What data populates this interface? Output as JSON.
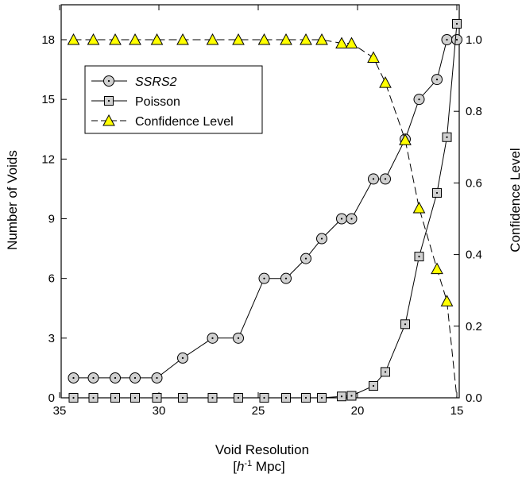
{
  "chart_data": {
    "type": "line",
    "title": "",
    "xlabel": "Void Resolution",
    "xlabel_line2": "[h-1 Mpc]",
    "xlabel_parts": {
      "open": "[",
      "italic": "h",
      "sup": "-1",
      "rest": " Mpc]"
    },
    "ylabel": "Number of Voids",
    "y2label": "Confidence Level",
    "xlim": [
      35,
      15
    ],
    "ylim": [
      0,
      20
    ],
    "y2lim": [
      0,
      1.1111
    ],
    "xticks": [
      35,
      30,
      25,
      20,
      15
    ],
    "yticks": [
      0,
      3,
      6,
      9,
      12,
      15,
      18
    ],
    "y2ticks": [
      0.0,
      0.2,
      0.4,
      0.6,
      0.8,
      1.0
    ],
    "xtick_labels": [
      "35",
      "30",
      "25",
      "20",
      "15"
    ],
    "ytick_labels": [
      "0",
      "3",
      "6",
      "9",
      "12",
      "15",
      "18"
    ],
    "y2tick_labels": [
      "0.0",
      "0.2",
      "0.4",
      "0.6",
      "0.8",
      "1.0"
    ],
    "legend_position": "top-left",
    "x": [
      34.3,
      33.3,
      32.2,
      31.2,
      30.1,
      28.8,
      27.3,
      26.0,
      24.7,
      23.6,
      22.6,
      21.8,
      20.8,
      20.3,
      19.2,
      18.6,
      17.6,
      16.9,
      16.0,
      15.5,
      15.0
    ],
    "series": [
      {
        "name": "SSRS2",
        "italic": true,
        "axis": "left",
        "marker": "circle-dot",
        "line": "solid",
        "values": [
          1,
          1,
          1,
          1,
          1,
          2,
          3,
          3,
          6,
          6,
          7,
          8,
          9,
          9,
          11,
          11,
          13,
          15,
          16,
          18,
          18
        ]
      },
      {
        "name": "Poisson",
        "italic": false,
        "axis": "left",
        "marker": "square-dot",
        "line": "solid",
        "values": [
          0,
          0,
          0,
          0,
          0,
          0,
          0,
          0,
          0,
          0,
          0,
          0,
          0.07,
          0.1,
          0.6,
          1.3,
          3.7,
          7.1,
          10.3,
          13.1,
          18.8
        ]
      },
      {
        "name": "Confidence Level",
        "italic": false,
        "axis": "right",
        "marker": "triangle",
        "line": "dashed",
        "values": [
          1.0,
          1.0,
          1.0,
          1.0,
          1.0,
          1.0,
          1.0,
          1.0,
          1.0,
          1.0,
          1.0,
          1.0,
          0.99,
          0.99,
          0.95,
          0.88,
          0.72,
          0.53,
          0.36,
          0.27,
          0.0
        ]
      }
    ]
  },
  "colors": {
    "marker_fill": "#d0d0d0",
    "triangle_fill": "#ffff00",
    "line": "#000000"
  }
}
